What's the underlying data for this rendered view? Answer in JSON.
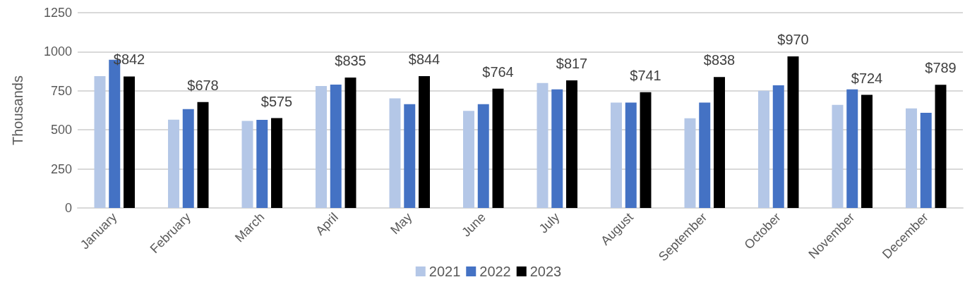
{
  "chart_data": {
    "type": "bar",
    "ylabel": "Thousands",
    "categories": [
      "January",
      "February",
      "March",
      "April",
      "May",
      "June",
      "July",
      "August",
      "September",
      "October",
      "November",
      "December"
    ],
    "series": [
      {
        "name": "2021",
        "color": "#b4c7e7",
        "values": [
          844,
          565,
          557,
          781,
          702,
          622,
          800,
          675,
          574,
          750,
          660,
          637
        ]
      },
      {
        "name": "2022",
        "color": "#4472c4",
        "values": [
          949,
          633,
          564,
          790,
          664,
          664,
          759,
          675,
          675,
          785,
          759,
          609
        ]
      },
      {
        "name": "2023",
        "color": "#000000",
        "values": [
          842,
          678,
          575,
          835,
          844,
          764,
          817,
          741,
          838,
          970,
          724,
          789
        ],
        "value_labels": [
          "$842",
          "$678",
          "$575",
          "$835",
          "$844",
          "$764",
          "$817",
          "$741",
          "$838",
          "$970",
          "$724",
          "$789"
        ]
      }
    ],
    "ylim": [
      0,
      1250
    ],
    "yticks": [
      0,
      250,
      500,
      750,
      1000,
      1250
    ],
    "grid": "y",
    "legend": "bottom"
  }
}
